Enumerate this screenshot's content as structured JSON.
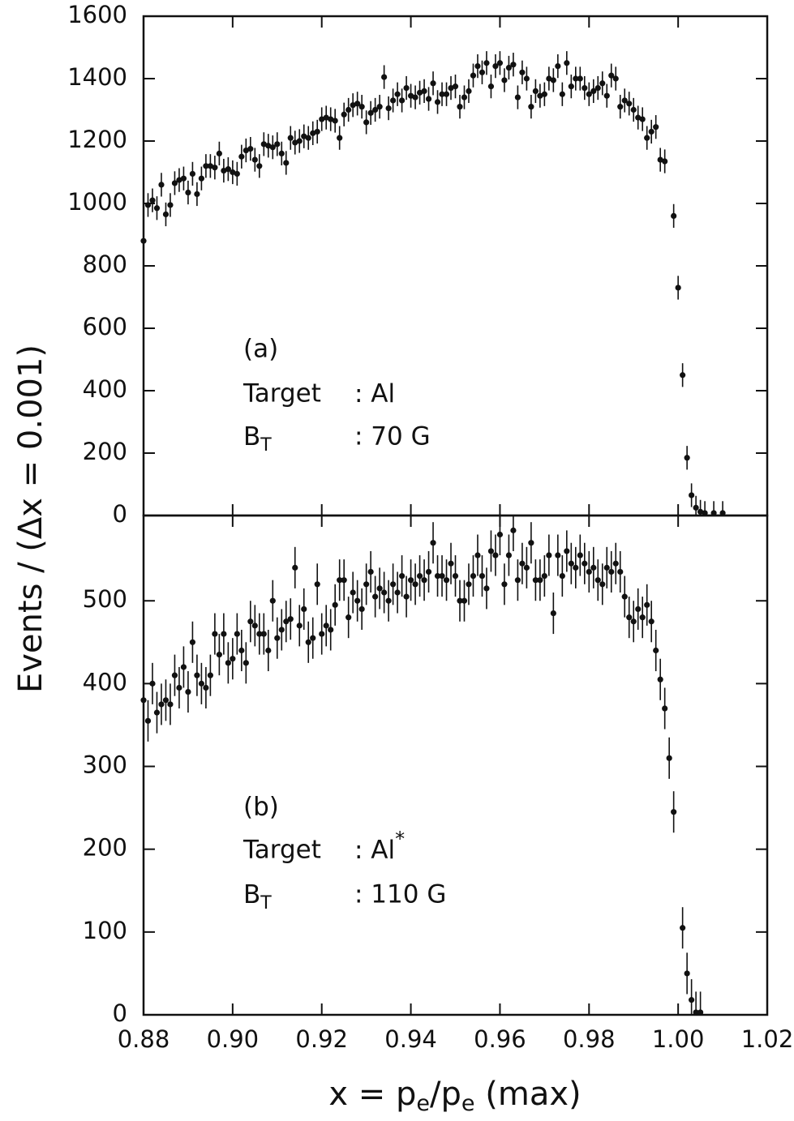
{
  "chart_data": [
    {
      "type": "scatter",
      "ylabel": "Events / (Δx = 0.001)",
      "panel_label": "(a)",
      "target_key": "Target",
      "target_value": ": Al",
      "field_key": "B",
      "field_key_sub": "T",
      "field_value": ": 70 G",
      "color": "#111111",
      "yerr": 38,
      "xlim": [
        0.88,
        1.02
      ],
      "xticks": [
        0.88,
        0.9,
        0.92,
        0.94,
        0.96,
        0.98,
        1,
        1.02
      ],
      "ylim": [
        0,
        1600
      ],
      "yticks": [
        0,
        200,
        400,
        600,
        800,
        1000,
        1200,
        1400,
        1600
      ],
      "x": [
        0.88,
        0.881,
        0.882,
        0.883,
        0.884,
        0.885,
        0.886,
        0.887,
        0.888,
        0.889,
        0.89,
        0.891,
        0.892,
        0.893,
        0.894,
        0.895,
        0.896,
        0.897,
        0.898,
        0.899,
        0.9,
        0.901,
        0.902,
        0.903,
        0.904,
        0.905,
        0.906,
        0.907,
        0.908,
        0.909,
        0.91,
        0.911,
        0.912,
        0.913,
        0.914,
        0.915,
        0.916,
        0.917,
        0.918,
        0.919,
        0.92,
        0.921,
        0.922,
        0.923,
        0.924,
        0.925,
        0.926,
        0.927,
        0.928,
        0.929,
        0.93,
        0.931,
        0.932,
        0.933,
        0.934,
        0.935,
        0.936,
        0.937,
        0.938,
        0.939,
        0.94,
        0.941,
        0.942,
        0.943,
        0.944,
        0.945,
        0.946,
        0.947,
        0.948,
        0.949,
        0.95,
        0.951,
        0.952,
        0.953,
        0.954,
        0.955,
        0.956,
        0.957,
        0.958,
        0.959,
        0.96,
        0.961,
        0.962,
        0.963,
        0.964,
        0.965,
        0.966,
        0.967,
        0.968,
        0.969,
        0.97,
        0.971,
        0.972,
        0.973,
        0.974,
        0.975,
        0.976,
        0.977,
        0.978,
        0.979,
        0.98,
        0.981,
        0.982,
        0.983,
        0.984,
        0.985,
        0.986,
        0.987,
        0.988,
        0.989,
        0.99,
        0.991,
        0.992,
        0.993,
        0.994,
        0.995,
        0.996,
        0.997,
        0.999,
        1.0,
        1.001,
        1.002,
        1.003,
        1.004,
        1.005,
        1.006,
        1.008,
        1.01
      ],
      "values": [
        880,
        995,
        1010,
        985,
        1060,
        965,
        995,
        1065,
        1075,
        1080,
        1035,
        1095,
        1030,
        1080,
        1120,
        1120,
        1115,
        1160,
        1105,
        1110,
        1100,
        1095,
        1150,
        1170,
        1175,
        1140,
        1120,
        1190,
        1185,
        1180,
        1190,
        1160,
        1130,
        1210,
        1195,
        1200,
        1215,
        1210,
        1225,
        1230,
        1270,
        1275,
        1270,
        1265,
        1210,
        1285,
        1300,
        1315,
        1320,
        1310,
        1260,
        1290,
        1300,
        1310,
        1405,
        1305,
        1330,
        1350,
        1330,
        1370,
        1345,
        1340,
        1355,
        1360,
        1335,
        1385,
        1325,
        1350,
        1350,
        1370,
        1375,
        1310,
        1340,
        1360,
        1410,
        1440,
        1420,
        1450,
        1375,
        1440,
        1450,
        1395,
        1435,
        1445,
        1340,
        1420,
        1400,
        1310,
        1360,
        1345,
        1350,
        1400,
        1395,
        1440,
        1350,
        1450,
        1375,
        1400,
        1400,
        1370,
        1350,
        1360,
        1370,
        1385,
        1345,
        1410,
        1400,
        1310,
        1330,
        1320,
        1300,
        1275,
        1270,
        1210,
        1230,
        1245,
        1140,
        1135,
        960,
        730,
        450,
        185,
        65,
        25,
        12,
        8,
        8,
        8
      ]
    },
    {
      "type": "scatter",
      "xlabel": [
        "x = p",
        "e",
        "/p",
        "e",
        " (max)"
      ],
      "panel_label": "(b)",
      "target_key": "Target",
      "target_value": ": Al",
      "target_value_sup": "*",
      "field_key": "B",
      "field_key_sub": "T",
      "field_value": ": 110 G",
      "color": "#111111",
      "yerr": 25,
      "xlim": [
        0.88,
        1.02
      ],
      "xticks": [
        0.88,
        {
          "value": 0.9,
          "label": "0.90"
        },
        0.92,
        0.94,
        0.96,
        0.98,
        {
          "value": 1,
          "label": "1.00"
        },
        1.02
      ],
      "ylim": [
        0,
        603
      ],
      "yticks": [
        0,
        100,
        200,
        300,
        400,
        500
      ],
      "x": [
        0.88,
        0.881,
        0.882,
        0.883,
        0.884,
        0.885,
        0.886,
        0.887,
        0.888,
        0.889,
        0.89,
        0.891,
        0.892,
        0.893,
        0.894,
        0.895,
        0.896,
        0.897,
        0.898,
        0.899,
        0.9,
        0.901,
        0.902,
        0.903,
        0.904,
        0.905,
        0.906,
        0.907,
        0.908,
        0.909,
        0.91,
        0.911,
        0.912,
        0.913,
        0.914,
        0.915,
        0.916,
        0.917,
        0.918,
        0.919,
        0.92,
        0.921,
        0.922,
        0.923,
        0.924,
        0.925,
        0.926,
        0.927,
        0.928,
        0.929,
        0.93,
        0.931,
        0.932,
        0.933,
        0.934,
        0.935,
        0.936,
        0.937,
        0.938,
        0.939,
        0.94,
        0.941,
        0.942,
        0.943,
        0.944,
        0.945,
        0.946,
        0.947,
        0.948,
        0.949,
        0.95,
        0.951,
        0.952,
        0.953,
        0.954,
        0.955,
        0.956,
        0.957,
        0.958,
        0.959,
        0.96,
        0.961,
        0.962,
        0.963,
        0.964,
        0.965,
        0.966,
        0.967,
        0.968,
        0.969,
        0.97,
        0.971,
        0.972,
        0.973,
        0.974,
        0.975,
        0.976,
        0.977,
        0.978,
        0.979,
        0.98,
        0.981,
        0.982,
        0.983,
        0.984,
        0.985,
        0.986,
        0.987,
        0.988,
        0.989,
        0.99,
        0.991,
        0.992,
        0.993,
        0.994,
        0.995,
        0.996,
        0.997,
        0.998,
        0.999,
        1.001,
        1.002,
        1.003,
        1.004,
        1.005
      ],
      "values": [
        380,
        355,
        400,
        365,
        375,
        380,
        375,
        410,
        395,
        420,
        390,
        450,
        410,
        400,
        395,
        410,
        460,
        435,
        460,
        425,
        430,
        460,
        440,
        425,
        475,
        470,
        460,
        460,
        440,
        500,
        455,
        465,
        475,
        478,
        540,
        470,
        490,
        450,
        455,
        520,
        460,
        470,
        465,
        495,
        525,
        525,
        480,
        510,
        500,
        490,
        520,
        535,
        505,
        515,
        510,
        500,
        520,
        510,
        530,
        505,
        525,
        520,
        530,
        525,
        535,
        570,
        530,
        530,
        525,
        545,
        530,
        500,
        500,
        520,
        530,
        555,
        530,
        515,
        560,
        555,
        580,
        520,
        555,
        585,
        525,
        545,
        540,
        570,
        525,
        525,
        530,
        555,
        485,
        555,
        530,
        560,
        545,
        540,
        555,
        545,
        535,
        540,
        525,
        520,
        540,
        535,
        545,
        535,
        505,
        480,
        475,
        490,
        480,
        495,
        475,
        440,
        405,
        370,
        310,
        245,
        105,
        50,
        18,
        3,
        3
      ]
    }
  ]
}
